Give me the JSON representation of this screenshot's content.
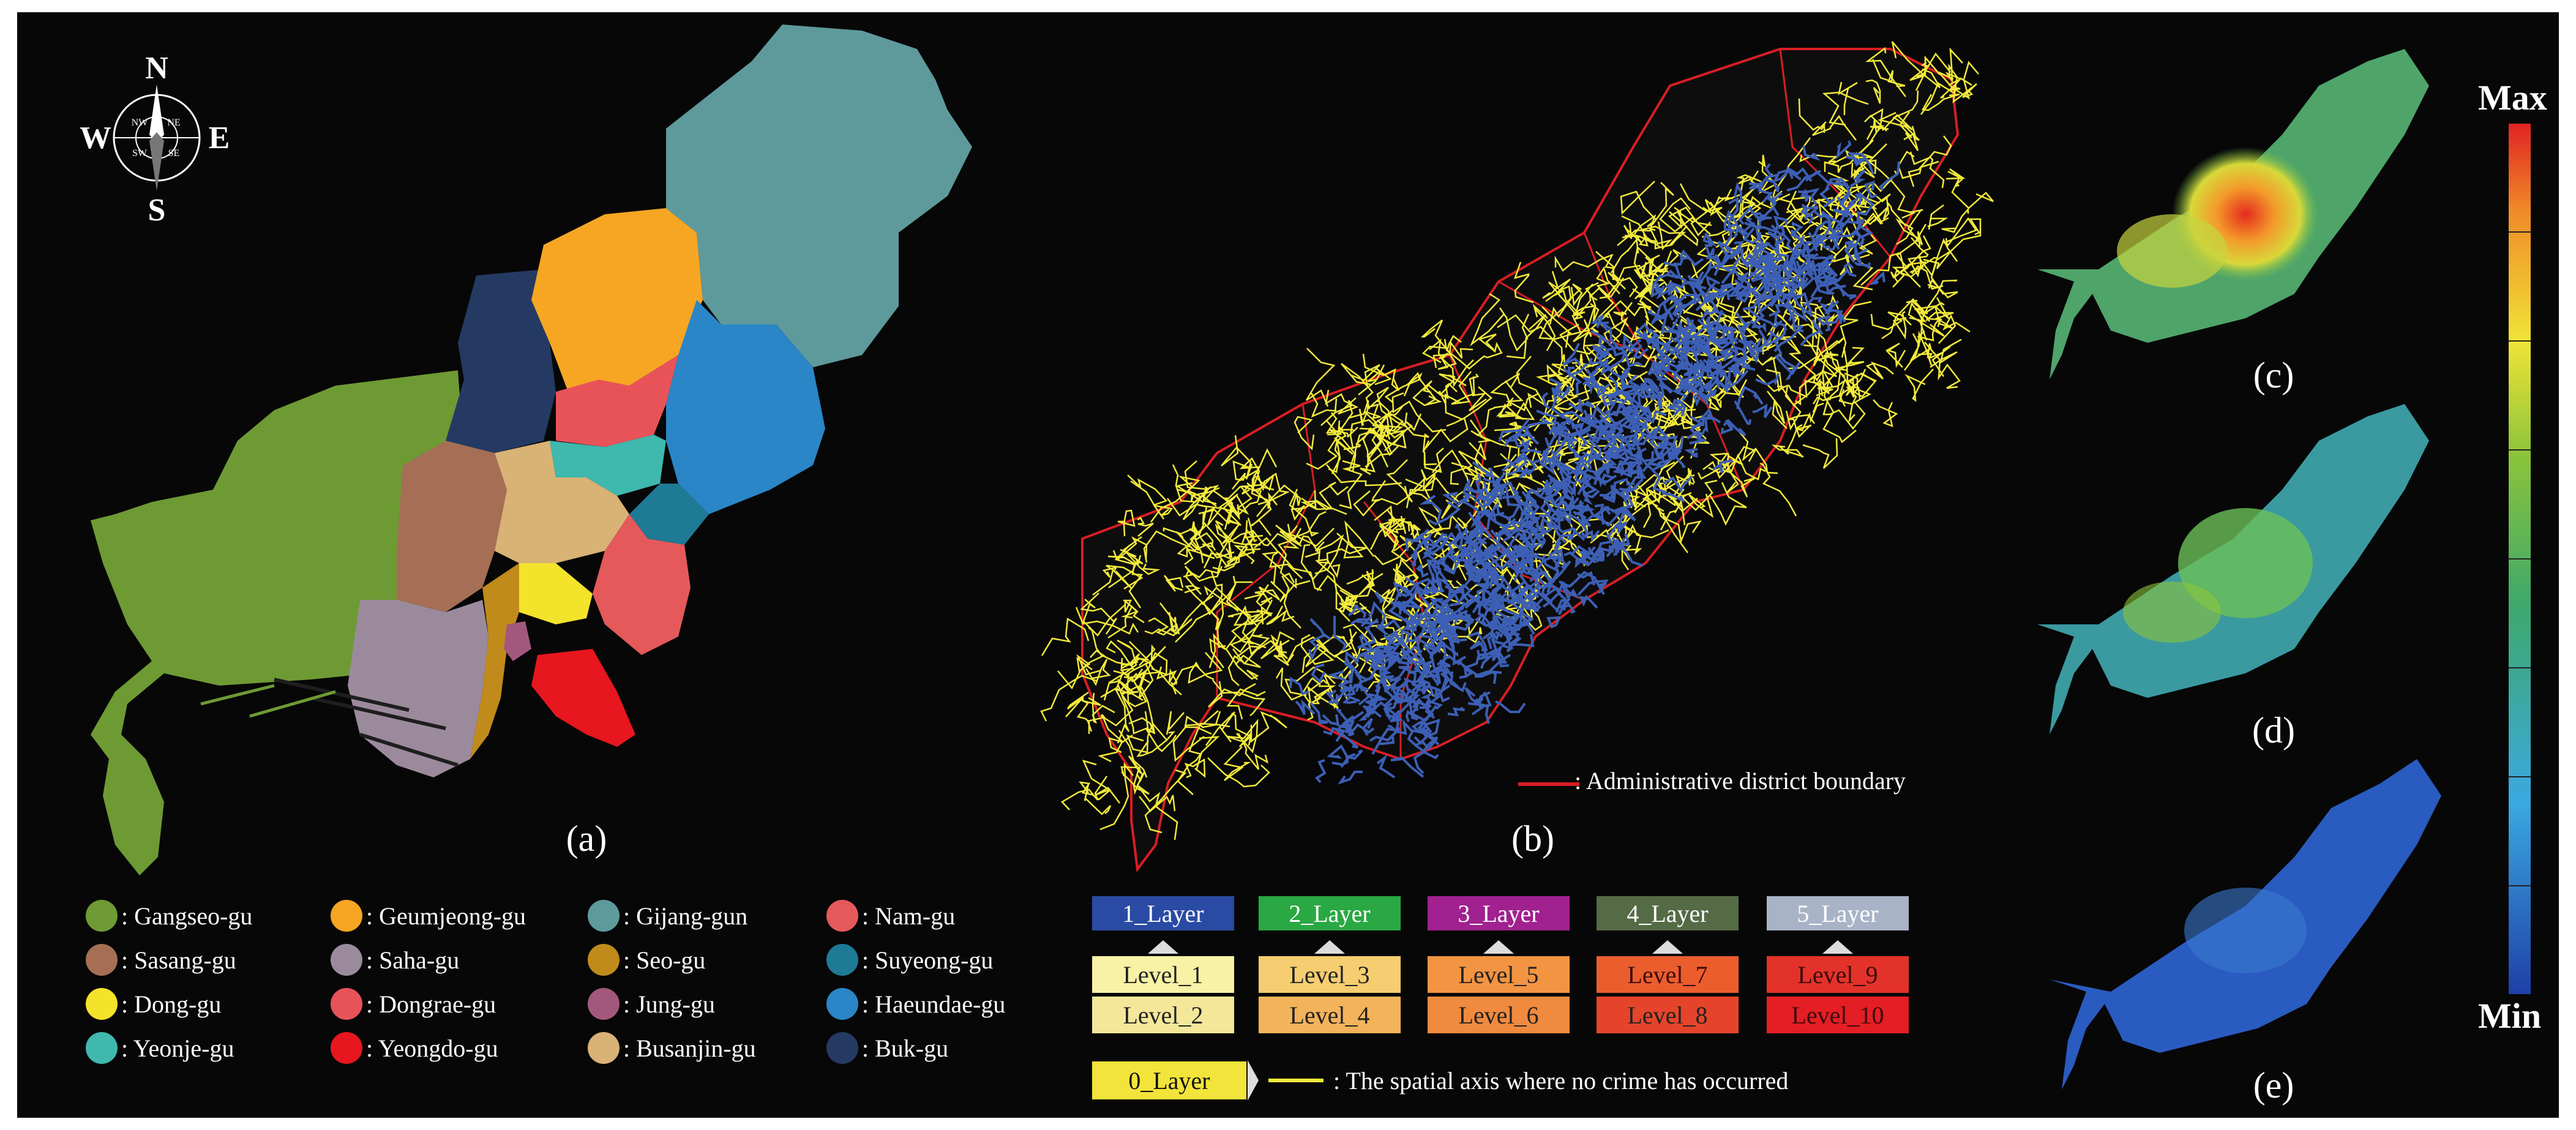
{
  "compass": {
    "n": "N",
    "s": "S",
    "e": "E",
    "w": "W",
    "ne": "NE",
    "nw": "NW",
    "se": "SE",
    "sw": "SW"
  },
  "panels": {
    "a": "(a)",
    "b": "(b)",
    "c": "(c)",
    "d": "(d)",
    "e": "(e)"
  },
  "districts": [
    {
      "label": ": Gangseo-gu",
      "color": "#6e9a34"
    },
    {
      "label": ": Sasang-gu",
      "color": "#a56e55"
    },
    {
      "label": ": Dong-gu",
      "color": "#f4e32b"
    },
    {
      "label": ": Yeonje-gu",
      "color": "#3fb8ad"
    },
    {
      "label": ": Geumjeong-gu",
      "color": "#f6a623"
    },
    {
      "label": ": Saha-gu",
      "color": "#9b8a9c"
    },
    {
      "label": ": Dongrae-gu",
      "color": "#e8535a"
    },
    {
      "label": ": Yeongdo-gu",
      "color": "#e8161e"
    },
    {
      "label": ": Gijang-gun",
      "color": "#5e9a9c"
    },
    {
      "label": ": Seo-gu",
      "color": "#c08b1a"
    },
    {
      "label": ": Jung-gu",
      "color": "#a2587c"
    },
    {
      "label": ": Busanjin-gu",
      "color": "#d9b276"
    },
    {
      "label": ": Nam-gu",
      "color": "#e5595b"
    },
    {
      "label": ": Suyeong-gu",
      "color": "#1f7a95"
    },
    {
      "label": ": Haeundae-gu",
      "color": "#2a86c6"
    },
    {
      "label": ": Buk-gu",
      "color": "#243a62"
    }
  ],
  "boundary_note": ": Administrative district boundary",
  "layers": [
    {
      "label": "1_Layer",
      "color": "#2a4ba3",
      "text": "#ffffff",
      "levels": [
        {
          "label": "Level_1",
          "color": "#f7f2a5"
        },
        {
          "label": "Level_2",
          "color": "#f4e79a"
        }
      ]
    },
    {
      "label": "2_Layer",
      "color": "#2aa843",
      "text": "#ffffff",
      "levels": [
        {
          "label": "Level_3",
          "color": "#f6cd70"
        },
        {
          "label": "Level_4",
          "color": "#f3b35a"
        }
      ]
    },
    {
      "label": "3_Layer",
      "color": "#a0218f",
      "text": "#ffffff",
      "levels": [
        {
          "label": "Level_5",
          "color": "#f29442"
        },
        {
          "label": "Level_6",
          "color": "#f08a3e"
        }
      ]
    },
    {
      "label": "4_Layer",
      "color": "#556b45",
      "text": "#ffffff",
      "levels": [
        {
          "label": "Level_7",
          "color": "#ec5d2e"
        },
        {
          "label": "Level_8",
          "color": "#e6442a"
        }
      ]
    },
    {
      "label": "5_Layer",
      "color": "#a9b3c7",
      "text": "#ffffff",
      "levels": [
        {
          "label": "Level_9",
          "color": "#e3322a"
        },
        {
          "label": "Level_10",
          "color": "#e51d24"
        }
      ]
    }
  ],
  "zero_layer": {
    "label": "0_Layer",
    "color": "#f2e43a"
  },
  "no_crime_note": ": The spatial axis where no crime has occurred",
  "scale": {
    "max": "Max",
    "min": "Min"
  },
  "colors": {
    "boundary": "#d81e24",
    "road": "#f2ea3c",
    "network": "#3c5fb5"
  }
}
